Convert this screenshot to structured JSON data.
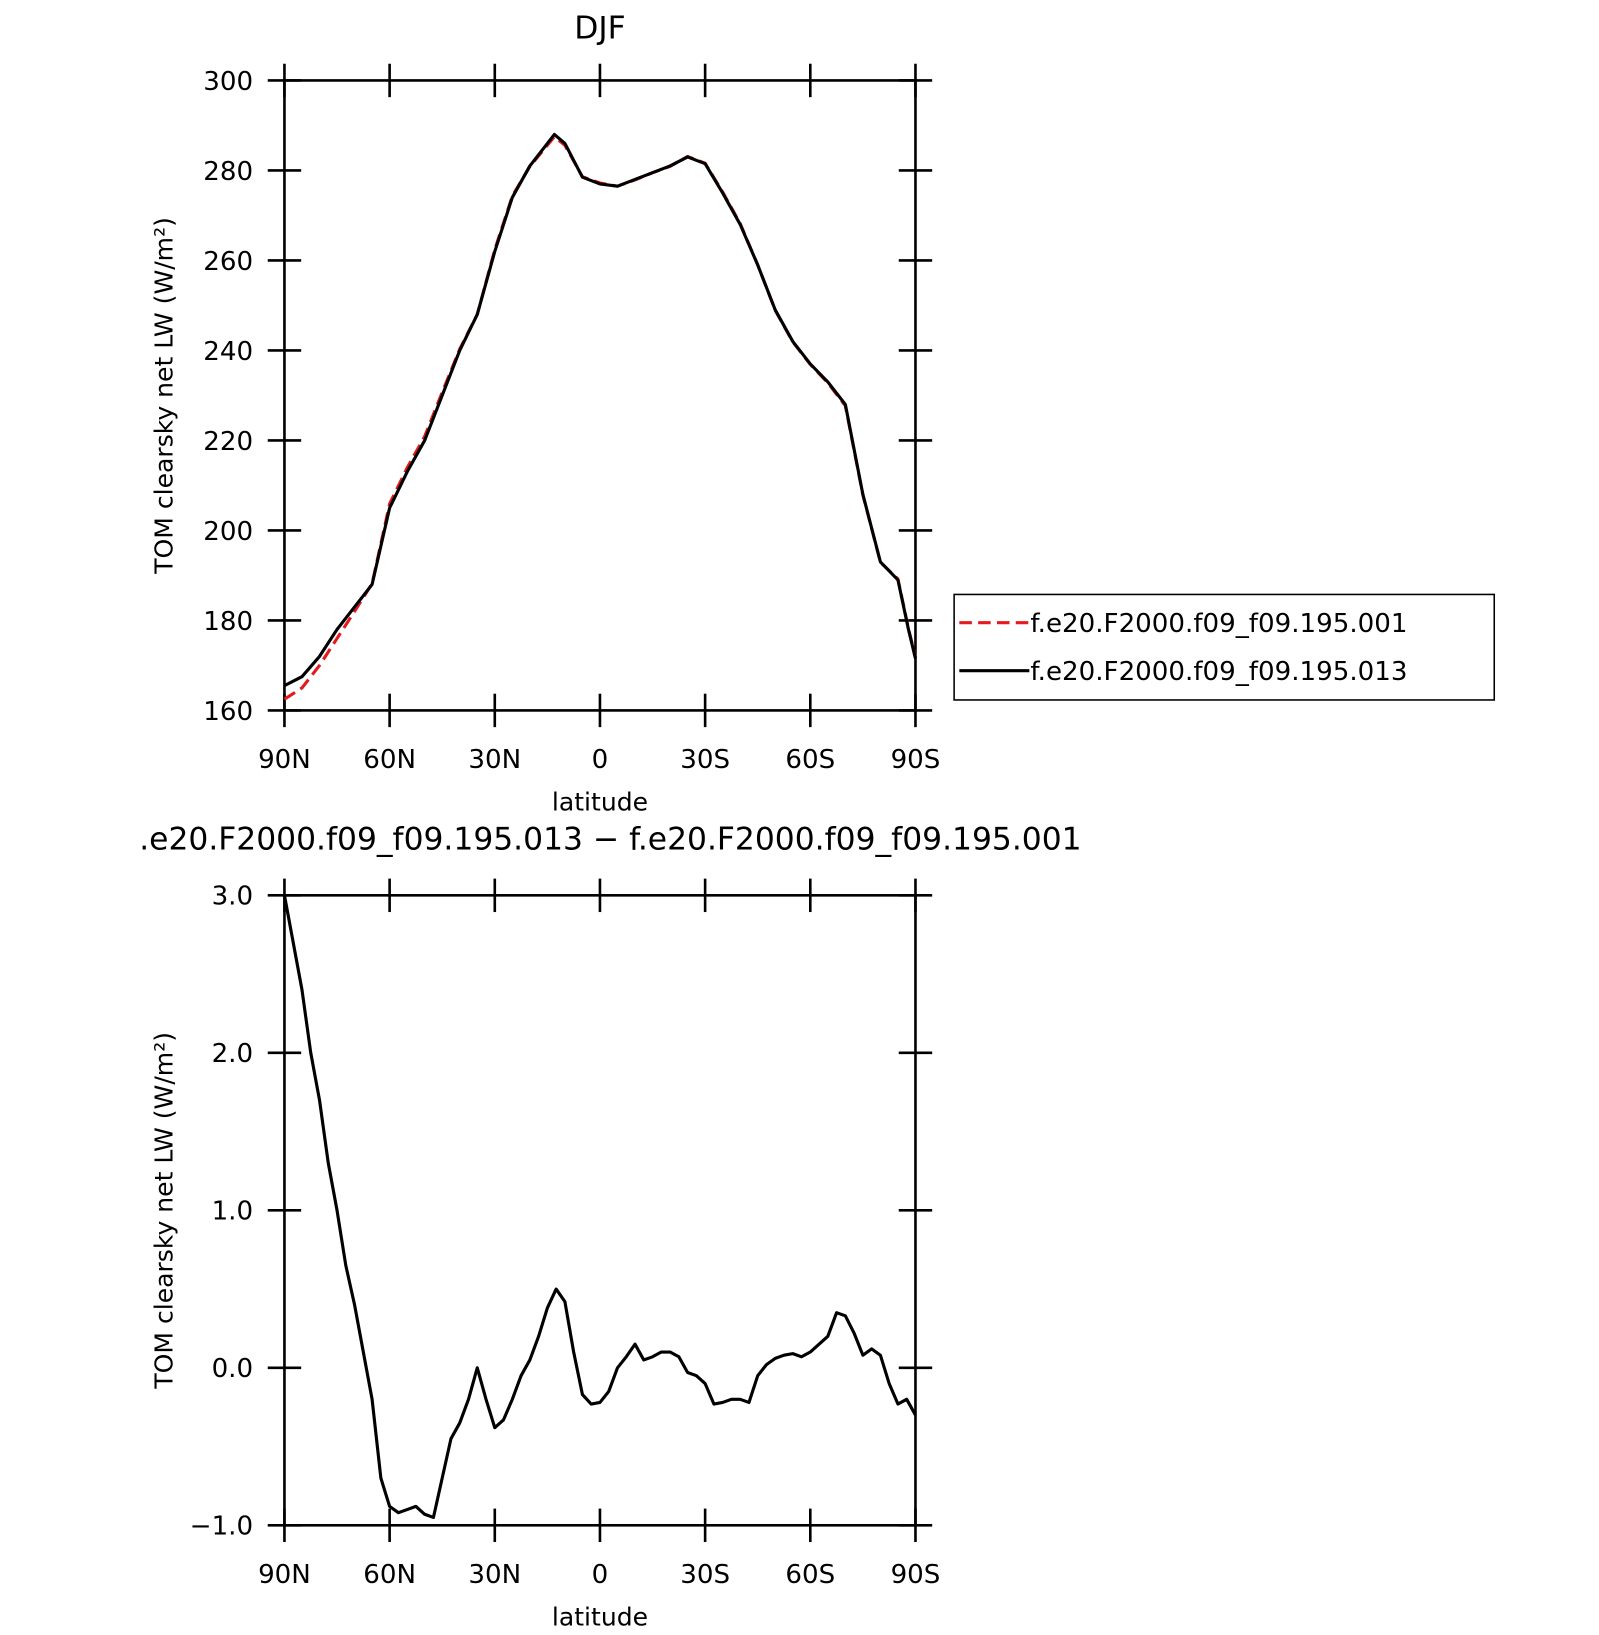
{
  "chart_data": [
    {
      "type": "line",
      "title": "DJF",
      "x_label": "latitude",
      "y_label": "TOM clearsky net LW (W/m²)",
      "x": [
        90,
        85,
        80,
        75,
        70,
        65,
        60,
        55,
        50,
        45,
        40,
        35,
        30,
        25,
        20,
        15,
        13,
        10,
        5,
        0,
        -5,
        -10,
        -15,
        -20,
        -25,
        -30,
        -35,
        -40,
        -45,
        -50,
        -55,
        -60,
        -65,
        -70,
        -75,
        -80,
        -85,
        -88,
        -90
      ],
      "series": [
        {
          "name": "f.e20.F2000.f09_f09.195.001",
          "color": "#e41a1c",
          "dashed": true,
          "values": [
            162.5,
            165,
            170,
            176,
            182,
            188.2,
            205.9,
            213.9,
            220.9,
            230.7,
            240.3,
            248,
            262.4,
            274.3,
            280.9,
            285.6,
            287.5,
            285.6,
            278.6,
            277.2,
            276.5,
            277.9,
            279.5,
            280.9,
            283.1,
            281.6,
            275.2,
            268.2,
            259,
            248.9,
            241.9,
            236.9,
            232.8,
            227.7,
            207.9,
            192.9,
            189.2,
            178.2,
            171.8
          ]
        },
        {
          "name": "f.e20.F2000.f09_f09.195.013",
          "color": "#000000",
          "dashed": false,
          "values": [
            165.5,
            167.5,
            172,
            178,
            183,
            188,
            205,
            213,
            220,
            230,
            240,
            248,
            262,
            274,
            281,
            286,
            288,
            286,
            278.5,
            277,
            276.5,
            278,
            279.5,
            281,
            283,
            281.5,
            275,
            268,
            259,
            249,
            242,
            237,
            233,
            228,
            208,
            193,
            189,
            178,
            171.5
          ]
        }
      ],
      "xlim": [
        90,
        -90
      ],
      "xticks": [
        {
          "value": 90,
          "label": "90N"
        },
        {
          "value": 60,
          "label": "60N"
        },
        {
          "value": 30,
          "label": "30N"
        },
        0,
        {
          "value": -30,
          "label": "30S"
        },
        {
          "value": -60,
          "label": "60S"
        },
        {
          "value": -90,
          "label": "90S"
        }
      ],
      "ylim": [
        160,
        300
      ],
      "yticks": [
        160,
        180,
        200,
        220,
        240,
        260,
        280,
        300
      ],
      "legend": "right"
    },
    {
      "type": "line",
      "title": ".e20.F2000.f09_f09.195.013 − f.e20.F2000.f09_f09.195.001",
      "x_label": "latitude",
      "y_label": "TOM clearsky net LW (W/m²)",
      "x": [
        90,
        87.5,
        85,
        82.5,
        80,
        77.5,
        75,
        72.5,
        70,
        67.5,
        65,
        62.5,
        60,
        57.5,
        55,
        52.5,
        50,
        47.5,
        45,
        42.5,
        40,
        37.5,
        35,
        32.5,
        30,
        27.5,
        25,
        22.5,
        20,
        17.5,
        15,
        12.5,
        10,
        7.5,
        5,
        2.5,
        0,
        -2.5,
        -5,
        -7.5,
        -10,
        -12.5,
        -15,
        -17.5,
        -20,
        -22.5,
        -25,
        -27.5,
        -30,
        -32.5,
        -35,
        -37.5,
        -40,
        -42.5,
        -45,
        -47.5,
        -50,
        -52.5,
        -55,
        -57.5,
        -60,
        -62.5,
        -65,
        -67.5,
        -70,
        -72.5,
        -75,
        -77.5,
        -80,
        -82.5,
        -85,
        -87.5,
        -90
      ],
      "values": [
        3.0,
        2.7,
        2.4,
        2.0,
        1.7,
        1.3,
        1.0,
        0.65,
        0.4,
        0.1,
        -0.2,
        -0.7,
        -0.88,
        -0.92,
        -0.9,
        -0.88,
        -0.93,
        -0.95,
        -0.7,
        -0.45,
        -0.35,
        -0.2,
        0.0,
        -0.2,
        -0.38,
        -0.33,
        -0.2,
        -0.05,
        0.05,
        0.2,
        0.38,
        0.5,
        0.42,
        0.1,
        -0.17,
        -0.23,
        -0.22,
        -0.15,
        0.0,
        0.07,
        0.15,
        0.05,
        0.07,
        0.1,
        0.1,
        0.07,
        -0.03,
        -0.05,
        -0.1,
        -0.23,
        -0.22,
        -0.2,
        -0.2,
        -0.22,
        -0.05,
        0.02,
        0.06,
        0.08,
        0.09,
        0.07,
        0.1,
        0.15,
        0.2,
        0.35,
        0.33,
        0.22,
        0.08,
        0.12,
        0.08,
        -0.1,
        -0.23,
        -0.2,
        -0.3
      ],
      "color": "#000000",
      "xlim": [
        90,
        -90
      ],
      "xticks": [
        {
          "value": 90,
          "label": "90N"
        },
        {
          "value": 60,
          "label": "60N"
        },
        {
          "value": 30,
          "label": "30N"
        },
        0,
        {
          "value": -30,
          "label": "30S"
        },
        {
          "value": -60,
          "label": "60S"
        },
        {
          "value": -90,
          "label": "90S"
        }
      ],
      "ylim": [
        -1,
        3
      ],
      "yticks": [
        {
          "value": -1,
          "label": "−1.0"
        },
        {
          "value": 0,
          "label": "0.0"
        },
        {
          "value": 1,
          "label": "1.0"
        },
        {
          "value": 2,
          "label": "2.0"
        },
        {
          "value": 3,
          "label": "3.0"
        }
      ]
    }
  ]
}
